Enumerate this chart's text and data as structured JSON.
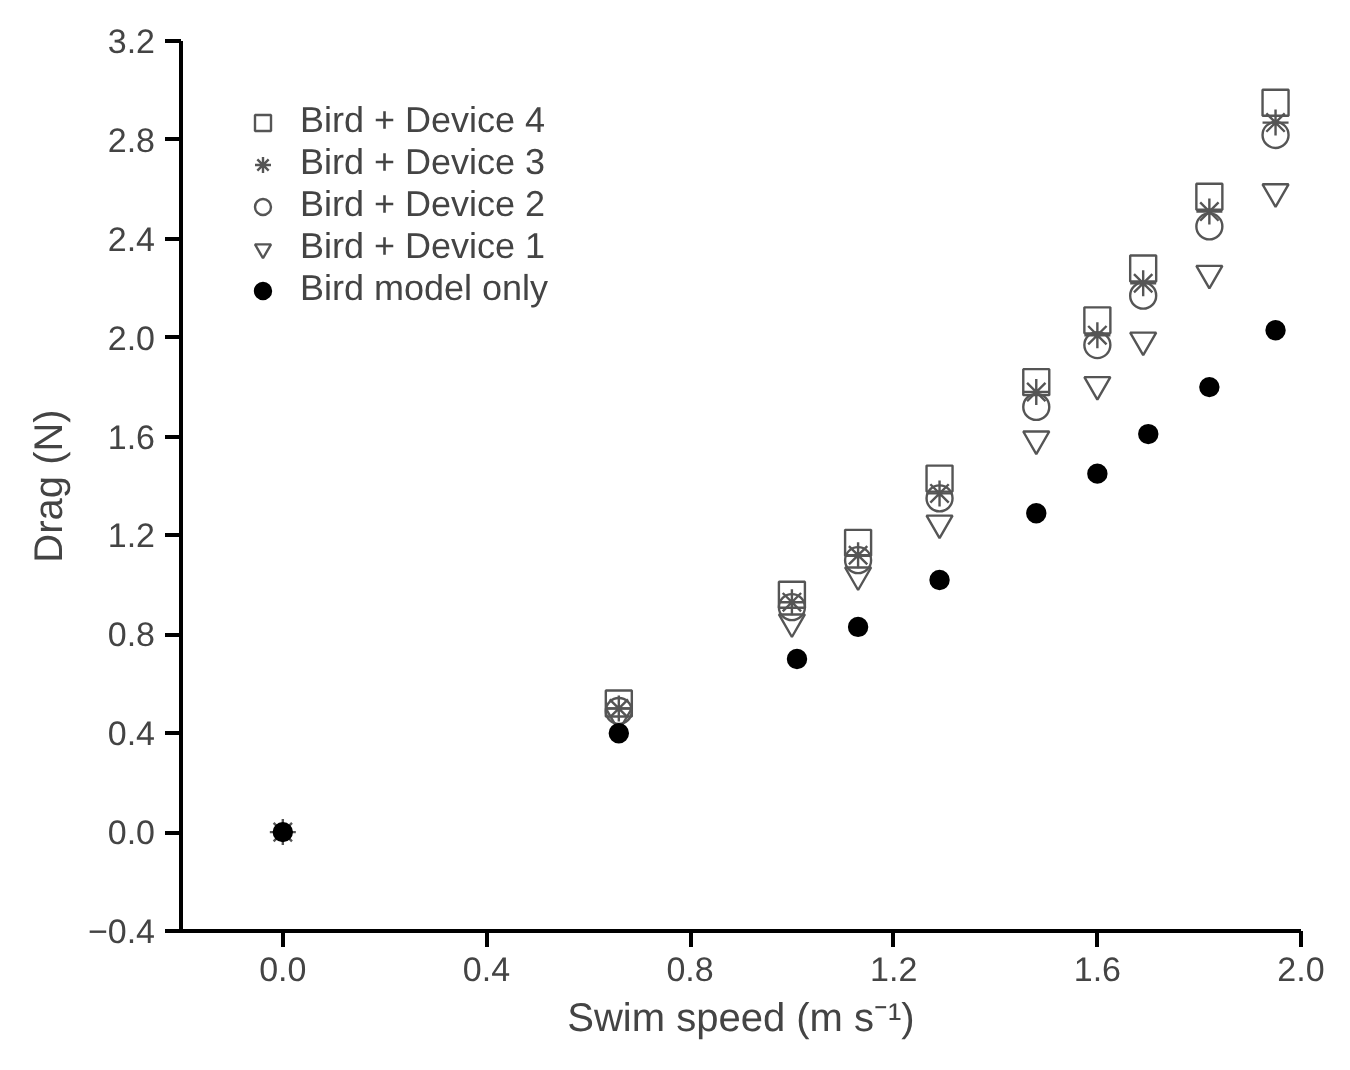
{
  "chart_data": {
    "type": "scatter",
    "xlabel": "Swim speed (m s⁻¹)",
    "ylabel": "Drag (N)",
    "xlim": [
      -0.2,
      2.0
    ],
    "ylim": [
      -0.4,
      3.2
    ],
    "xticks": [
      {
        "value": 0,
        "label": "0.0"
      },
      0.4,
      0.8,
      1.2,
      1.6,
      {
        "value": 2,
        "label": "2.0"
      }
    ],
    "yticks": [
      {
        "value": -0.4,
        "label": "−0.4"
      },
      {
        "value": 0,
        "label": "0.0"
      },
      0.4,
      0.8,
      1.2,
      1.6,
      {
        "value": 2,
        "label": "2.0"
      },
      2.4,
      2.8,
      3.2
    ],
    "grid": false,
    "legend": "top left",
    "series": [
      {
        "name": "Bird + Device 4",
        "color": "#555555",
        "marker": "square",
        "x": [
          0.66,
          1.0,
          1.13,
          1.29,
          1.48,
          1.6,
          1.69,
          1.82,
          1.95
        ],
        "values": [
          0.52,
          0.96,
          1.17,
          1.43,
          1.82,
          2.07,
          2.28,
          2.57,
          2.95
        ]
      },
      {
        "name": "Bird + Device 3",
        "color": "#555555",
        "marker": "cross",
        "x": [
          0,
          0.66,
          1.0,
          1.13,
          1.29,
          1.48,
          1.6,
          1.69,
          1.82,
          1.95
        ],
        "values": [
          0,
          0.5,
          0.93,
          1.12,
          1.37,
          1.78,
          2.01,
          2.22,
          2.51,
          2.87
        ]
      },
      {
        "name": "Bird + Device 2",
        "color": "#555555",
        "marker": "circle",
        "x": [
          0.66,
          1.0,
          1.13,
          1.29,
          1.48,
          1.6,
          1.69,
          1.82,
          1.95
        ],
        "values": [
          0.49,
          0.91,
          1.1,
          1.35,
          1.72,
          1.97,
          2.17,
          2.45,
          2.82
        ]
      },
      {
        "name": "Bird + Device 1",
        "color": "#555555",
        "marker": "triangle",
        "x": [
          0.66,
          1.0,
          1.13,
          1.29,
          1.48,
          1.6,
          1.69,
          1.82,
          1.95
        ],
        "values": [
          0.47,
          0.85,
          1.04,
          1.25,
          1.59,
          1.81,
          1.99,
          2.26,
          2.59
        ]
      },
      {
        "name": "Bird model only",
        "color": "#000000",
        "marker": "circle",
        "x": [
          0,
          0.66,
          1.01,
          1.13,
          1.29,
          1.48,
          1.6,
          1.7,
          1.82,
          1.95
        ],
        "values": [
          0,
          0.4,
          0.7,
          0.83,
          1.02,
          1.29,
          1.45,
          1.61,
          1.8,
          2.03
        ]
      }
    ]
  }
}
